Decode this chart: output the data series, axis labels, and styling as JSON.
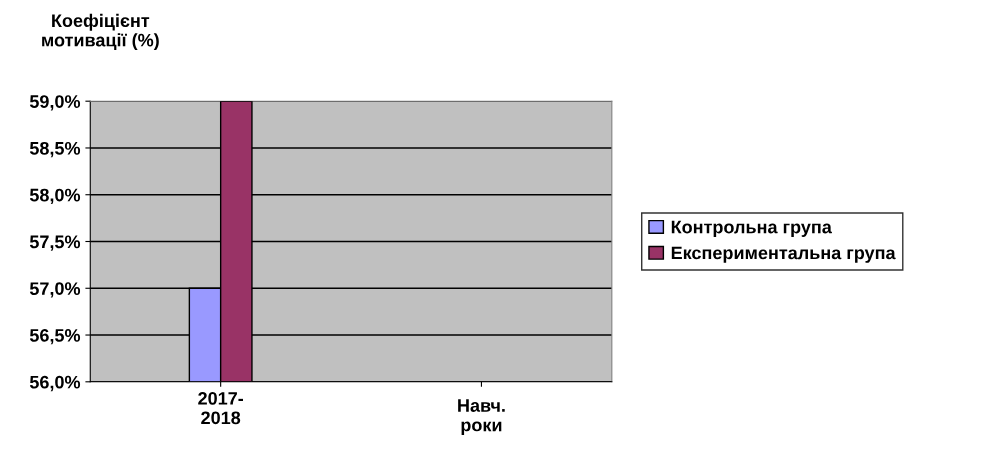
{
  "chart_data": {
    "type": "bar",
    "ylabel": "Коефіцієнт\nмотивації (%)",
    "xlabel": "Навч.\nроки",
    "categories": [
      "2017-\n2018",
      null
    ],
    "series": [
      {
        "name": "Контрольна група",
        "color": "#9999ff",
        "values": [
          57.0,
          null
        ]
      },
      {
        "name": "Експериментальна група",
        "color": "#993366",
        "values": [
          59.0,
          null
        ]
      }
    ],
    "ylim": [
      56.0,
      59.0
    ],
    "yticks": [
      {
        "value": 56.0,
        "label": "56,0%"
      },
      {
        "value": 56.5,
        "label": "56,5%"
      },
      {
        "value": 57.0,
        "label": "57,0%"
      },
      {
        "value": 57.5,
        "label": "57,5%"
      },
      {
        "value": 58.0,
        "label": "58,0%"
      },
      {
        "value": 58.5,
        "label": "58,5%"
      },
      {
        "value": 59.0,
        "label": "59,0%"
      }
    ],
    "grid": "y",
    "legend": "right"
  }
}
